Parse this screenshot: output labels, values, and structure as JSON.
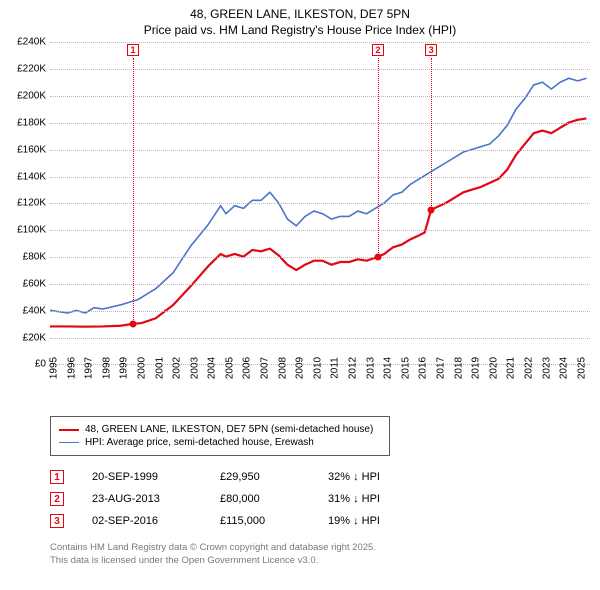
{
  "title": {
    "line1": "48, GREEN LANE, ILKESTON, DE7 5PN",
    "line2": "Price paid vs. HM Land Registry's House Price Index (HPI)",
    "fontsize": 12,
    "color": "#000000"
  },
  "chart": {
    "type": "line",
    "background_color": "#ffffff",
    "grid_color": "#b9b9b9",
    "x_years": [
      1995,
      1996,
      1997,
      1998,
      1999,
      2000,
      2001,
      2002,
      2003,
      2004,
      2005,
      2006,
      2007,
      2008,
      2009,
      2010,
      2011,
      2012,
      2013,
      2014,
      2015,
      2016,
      2017,
      2018,
      2019,
      2020,
      2021,
      2022,
      2023,
      2024,
      2025
    ],
    "xlim": [
      1995,
      2025.7
    ],
    "ylim": [
      0,
      240000
    ],
    "ytick_step": 20000,
    "y_labels": [
      "£0",
      "£20K",
      "£40K",
      "£60K",
      "£80K",
      "£100K",
      "£120K",
      "£140K",
      "£160K",
      "£180K",
      "£200K",
      "£220K",
      "£240K"
    ],
    "label_fontsize": 10,
    "series": [
      {
        "name": "price_paid",
        "label": "48, GREEN LANE, ILKESTON, DE7 5PN (semi-detached house)",
        "color": "#e30613",
        "line_width": 2.2,
        "points": [
          [
            1995.0,
            28000
          ],
          [
            1996.0,
            28000
          ],
          [
            1997.0,
            27800
          ],
          [
            1998.0,
            28000
          ],
          [
            1999.0,
            28500
          ],
          [
            1999.72,
            29950
          ],
          [
            2000.2,
            30500
          ],
          [
            2001.0,
            34000
          ],
          [
            2002.0,
            44000
          ],
          [
            2003.0,
            58000
          ],
          [
            2004.0,
            73000
          ],
          [
            2004.7,
            82000
          ],
          [
            2005.0,
            80000
          ],
          [
            2005.5,
            82000
          ],
          [
            2006.0,
            80000
          ],
          [
            2006.5,
            85000
          ],
          [
            2007.0,
            84000
          ],
          [
            2007.5,
            86000
          ],
          [
            2008.0,
            81000
          ],
          [
            2008.5,
            74000
          ],
          [
            2009.0,
            70000
          ],
          [
            2009.5,
            74000
          ],
          [
            2010.0,
            77000
          ],
          [
            2010.5,
            77000
          ],
          [
            2011.0,
            74000
          ],
          [
            2011.5,
            76000
          ],
          [
            2012.0,
            76000
          ],
          [
            2012.5,
            78000
          ],
          [
            2013.0,
            77000
          ],
          [
            2013.65,
            80000
          ],
          [
            2014.0,
            82000
          ],
          [
            2014.5,
            87000
          ],
          [
            2015.0,
            89000
          ],
          [
            2015.5,
            93000
          ],
          [
            2016.0,
            96000
          ],
          [
            2016.3,
            98000
          ],
          [
            2016.67,
            115000
          ],
          [
            2017.0,
            117000
          ],
          [
            2017.5,
            120000
          ],
          [
            2018.0,
            124000
          ],
          [
            2018.5,
            128000
          ],
          [
            2019.0,
            130000
          ],
          [
            2019.5,
            132000
          ],
          [
            2020.0,
            135000
          ],
          [
            2020.5,
            138000
          ],
          [
            2021.0,
            145000
          ],
          [
            2021.5,
            156000
          ],
          [
            2022.0,
            164000
          ],
          [
            2022.5,
            172000
          ],
          [
            2023.0,
            174000
          ],
          [
            2023.5,
            172000
          ],
          [
            2024.0,
            176000
          ],
          [
            2024.5,
            180000
          ],
          [
            2025.0,
            182000
          ],
          [
            2025.5,
            183000
          ]
        ]
      },
      {
        "name": "hpi",
        "label": "HPI: Average price, semi-detached house, Erewash",
        "color": "#4a74c9",
        "line_width": 1.6,
        "points": [
          [
            1995.0,
            40000
          ],
          [
            1996.0,
            38000
          ],
          [
            1996.5,
            40000
          ],
          [
            1997.0,
            38000
          ],
          [
            1997.5,
            42000
          ],
          [
            1998.0,
            41000
          ],
          [
            1999.0,
            44000
          ],
          [
            2000.0,
            48000
          ],
          [
            2001.0,
            56000
          ],
          [
            2002.0,
            68000
          ],
          [
            2003.0,
            88000
          ],
          [
            2004.0,
            104000
          ],
          [
            2004.7,
            118000
          ],
          [
            2005.0,
            112000
          ],
          [
            2005.5,
            118000
          ],
          [
            2006.0,
            116000
          ],
          [
            2006.5,
            122000
          ],
          [
            2007.0,
            122000
          ],
          [
            2007.5,
            128000
          ],
          [
            2008.0,
            120000
          ],
          [
            2008.5,
            108000
          ],
          [
            2009.0,
            103000
          ],
          [
            2009.5,
            110000
          ],
          [
            2010.0,
            114000
          ],
          [
            2010.5,
            112000
          ],
          [
            2011.0,
            108000
          ],
          [
            2011.5,
            110000
          ],
          [
            2012.0,
            110000
          ],
          [
            2012.5,
            114000
          ],
          [
            2013.0,
            112000
          ],
          [
            2013.5,
            116000
          ],
          [
            2014.0,
            120000
          ],
          [
            2014.5,
            126000
          ],
          [
            2015.0,
            128000
          ],
          [
            2015.5,
            134000
          ],
          [
            2016.0,
            138000
          ],
          [
            2016.5,
            142000
          ],
          [
            2017.0,
            146000
          ],
          [
            2017.5,
            150000
          ],
          [
            2018.0,
            154000
          ],
          [
            2018.5,
            158000
          ],
          [
            2019.0,
            160000
          ],
          [
            2019.5,
            162000
          ],
          [
            2020.0,
            164000
          ],
          [
            2020.5,
            170000
          ],
          [
            2021.0,
            178000
          ],
          [
            2021.5,
            190000
          ],
          [
            2022.0,
            198000
          ],
          [
            2022.5,
            208000
          ],
          [
            2023.0,
            210000
          ],
          [
            2023.5,
            205000
          ],
          [
            2024.0,
            210000
          ],
          [
            2024.5,
            213000
          ],
          [
            2025.0,
            211000
          ],
          [
            2025.5,
            213000
          ]
        ]
      }
    ],
    "sale_markers": [
      {
        "n": "1",
        "year": 1999.72,
        "price": 29950,
        "color": "#e30613"
      },
      {
        "n": "2",
        "year": 2013.65,
        "price": 80000,
        "color": "#e30613"
      },
      {
        "n": "3",
        "year": 2016.67,
        "price": 115000,
        "color": "#e30613"
      }
    ]
  },
  "legend": {
    "border_color": "#5a5a5a",
    "rows": [
      {
        "color": "#e30613",
        "width": 2.2,
        "label": "48, GREEN LANE, ILKESTON, DE7 5PN (semi-detached house)"
      },
      {
        "color": "#4a74c9",
        "width": 1.6,
        "label": "HPI: Average price, semi-detached house, Erewash"
      }
    ]
  },
  "sales_table": {
    "marker_color": "#e30613",
    "rows": [
      {
        "n": "1",
        "date": "20-SEP-1999",
        "price": "£29,950",
        "diff": "32% ↓ HPI"
      },
      {
        "n": "2",
        "date": "23-AUG-2013",
        "price": "£80,000",
        "diff": "31% ↓ HPI"
      },
      {
        "n": "3",
        "date": "02-SEP-2016",
        "price": "£115,000",
        "diff": "19% ↓ HPI"
      }
    ]
  },
  "footer": {
    "line1": "Contains HM Land Registry data © Crown copyright and database right 2025.",
    "line2": "This data is licensed under the Open Government Licence v3.0.",
    "color": "#7a7a7a"
  }
}
